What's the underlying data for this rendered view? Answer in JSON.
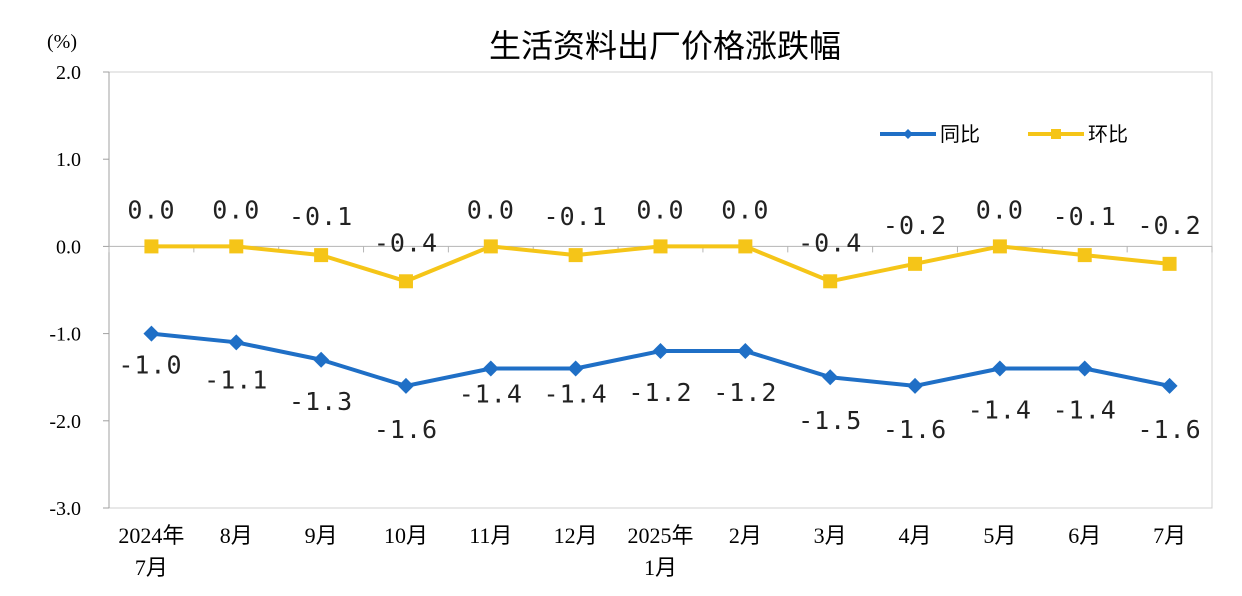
{
  "chart_data": {
    "type": "line",
    "title": "生活资料出厂价格涨跌幅",
    "unit": "(%)",
    "ylim": [
      -3.0,
      2.0
    ],
    "yticks": [
      "2.0",
      "1.0",
      "0.0",
      "-1.0",
      "-2.0",
      "-3.0"
    ],
    "categories": [
      [
        "2024年",
        "7月"
      ],
      [
        "8月"
      ],
      [
        "9月"
      ],
      [
        "10月"
      ],
      [
        "11月"
      ],
      [
        "12月"
      ],
      [
        "2025年",
        "1月"
      ],
      [
        "2月"
      ],
      [
        "3月"
      ],
      [
        "4月"
      ],
      [
        "5月"
      ],
      [
        "6月"
      ],
      [
        "7月"
      ]
    ],
    "legend_position": "top-right",
    "series": [
      {
        "name": "同比",
        "color": "#1F6FC6",
        "marker": "diamond",
        "values": [
          -1.0,
          -1.1,
          -1.3,
          -1.6,
          -1.4,
          -1.4,
          -1.2,
          -1.2,
          -1.5,
          -1.6,
          -1.4,
          -1.4,
          -1.6
        ],
        "labels": [
          "-1.0",
          "-1.1",
          "-1.3",
          "-1.6",
          "-1.4",
          "-1.4",
          "-1.2",
          "-1.2",
          "-1.5",
          "-1.6",
          "-1.4",
          "-1.4",
          "-1.6"
        ]
      },
      {
        "name": "环比",
        "color": "#F5C518",
        "marker": "square",
        "values": [
          0.0,
          0.0,
          -0.1,
          -0.4,
          0.0,
          -0.1,
          0.0,
          0.0,
          -0.4,
          -0.2,
          0.0,
          -0.1,
          -0.2
        ],
        "labels": [
          "0.0",
          "0.0",
          "-0.1",
          "-0.4",
          "0.0",
          "-0.1",
          "0.0",
          "0.0",
          "-0.4",
          "-0.2",
          "0.0",
          "-0.1",
          "-0.2"
        ]
      }
    ]
  }
}
